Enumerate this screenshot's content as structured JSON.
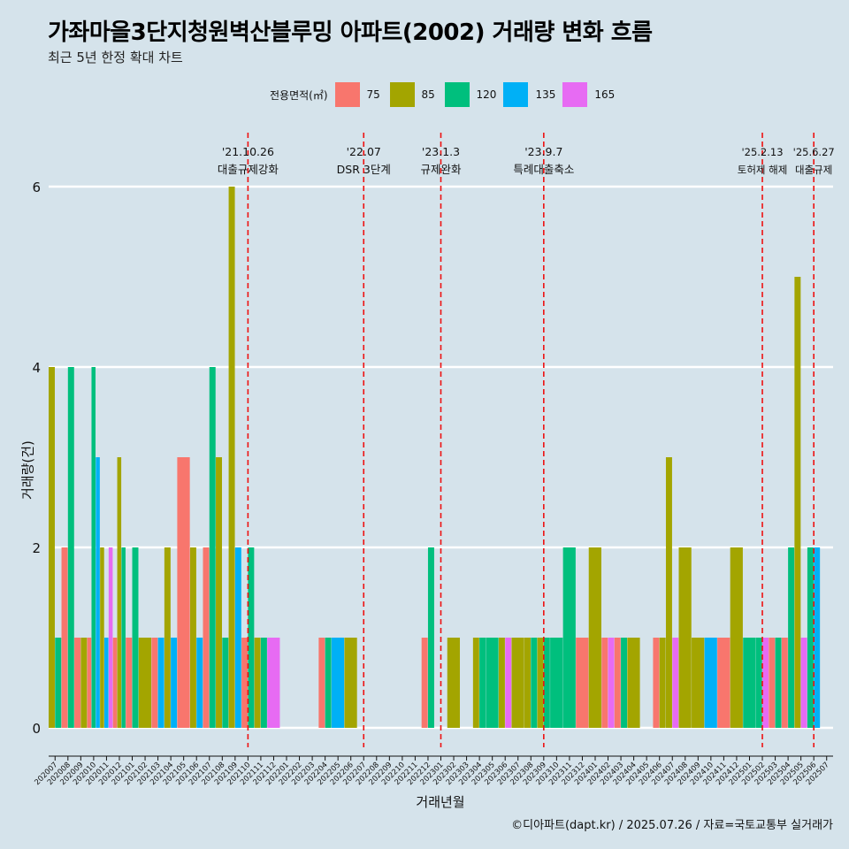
{
  "title": "가좌마을3단지청원벽산블루밍 아파트(2002) 거래량 변화 흐름",
  "subtitle": "최근 5년 한정 확대 차트",
  "caption": "©디아파트(dapt.kr) / 2025.07.26 / 자료=국토교통부 실거래가",
  "chart_data": {
    "type": "bar",
    "xlabel": "거래년월",
    "ylabel": "거래량(건)",
    "ylim": [
      0,
      6
    ],
    "yticks": [
      "0",
      "2",
      "4",
      "6"
    ],
    "grid": "horizontal",
    "legend_title": "전용면적(㎡)",
    "legend_position": "top",
    "series": [
      {
        "name": "75",
        "color": "#f8766d"
      },
      {
        "name": "85",
        "color": "#a3a500"
      },
      {
        "name": "120",
        "color": "#00bf7d"
      },
      {
        "name": "135",
        "color": "#00b0f6"
      },
      {
        "name": "165",
        "color": "#e76bf3"
      }
    ],
    "categories": [
      "202007",
      "202008",
      "202009",
      "202010",
      "202011",
      "202012",
      "202101",
      "202102",
      "202103",
      "202104",
      "202105",
      "202106",
      "202107",
      "202108",
      "202109",
      "202110",
      "202111",
      "202112",
      "202201",
      "202202",
      "202203",
      "202204",
      "202205",
      "202206",
      "202207",
      "202208",
      "202209",
      "202210",
      "202211",
      "202212",
      "202301",
      "202302",
      "202303",
      "202304",
      "202305",
      "202306",
      "202307",
      "202308",
      "202309",
      "202310",
      "202311",
      "202312",
      "202401",
      "202402",
      "202403",
      "202404",
      "202405",
      "202406",
      "202407",
      "202408",
      "202409",
      "202410",
      "202411",
      "202412",
      "202501",
      "202502",
      "202503",
      "202504",
      "202505",
      "202506",
      "202507"
    ],
    "bars": [
      {
        "month": "202007",
        "values": {
          "85": 4,
          "120": 1
        }
      },
      {
        "month": "202008",
        "values": {
          "75": 2,
          "120": 4
        }
      },
      {
        "month": "202009",
        "values": {
          "75": 1,
          "85": 1
        }
      },
      {
        "month": "202010",
        "values": {
          "75": 1,
          "120": 4,
          "135": 3
        }
      },
      {
        "month": "202011",
        "values": {
          "85": 2,
          "135": 1,
          "165": 2
        }
      },
      {
        "month": "202012",
        "values": {
          "75": 1,
          "85": 3,
          "120": 2
        }
      },
      {
        "month": "202101",
        "values": {
          "75": 1,
          "120": 2
        }
      },
      {
        "month": "202102",
        "values": {
          "85": 1
        }
      },
      {
        "month": "202103",
        "values": {
          "75": 1,
          "135": 1
        }
      },
      {
        "month": "202104",
        "values": {
          "85": 2,
          "135": 1
        }
      },
      {
        "month": "202105",
        "values": {
          "75": 3
        }
      },
      {
        "month": "202106",
        "values": {
          "85": 2,
          "135": 1
        }
      },
      {
        "month": "202107",
        "values": {
          "75": 2,
          "120": 4
        }
      },
      {
        "month": "202108",
        "values": {
          "85": 3,
          "120": 1
        }
      },
      {
        "month": "202109",
        "values": {
          "85": 6,
          "135": 2
        }
      },
      {
        "month": "202110",
        "values": {
          "75": 1,
          "120": 2
        }
      },
      {
        "month": "202111",
        "values": {
          "85": 1,
          "120": 1
        }
      },
      {
        "month": "202112",
        "values": {
          "165": 1
        }
      },
      {
        "month": "202201",
        "values": {}
      },
      {
        "month": "202202",
        "values": {}
      },
      {
        "month": "202203",
        "values": {}
      },
      {
        "month": "202204",
        "values": {
          "75": 1,
          "120": 1
        }
      },
      {
        "month": "202205",
        "values": {
          "135": 1
        }
      },
      {
        "month": "202206",
        "values": {
          "85": 1
        }
      },
      {
        "month": "202207",
        "values": {}
      },
      {
        "month": "202208",
        "values": {}
      },
      {
        "month": "202209",
        "values": {}
      },
      {
        "month": "202210",
        "values": {}
      },
      {
        "month": "202211",
        "values": {}
      },
      {
        "month": "202212",
        "values": {
          "75": 1,
          "120": 2
        }
      },
      {
        "month": "202301",
        "values": {}
      },
      {
        "month": "202302",
        "values": {
          "85": 1
        }
      },
      {
        "month": "202303",
        "values": {}
      },
      {
        "month": "202304",
        "values": {
          "85": 1,
          "120": 1
        }
      },
      {
        "month": "202305",
        "values": {
          "120": 1
        }
      },
      {
        "month": "202306",
        "values": {
          "85": 1,
          "165": 1
        }
      },
      {
        "month": "202307",
        "values": {
          "85": 1
        }
      },
      {
        "month": "202308",
        "values": {
          "85": 1,
          "120": 1
        }
      },
      {
        "month": "202309",
        "values": {
          "85": 1,
          "120": 1
        }
      },
      {
        "month": "202310",
        "values": {
          "120": 1
        }
      },
      {
        "month": "202311",
        "values": {
          "120": 2
        }
      },
      {
        "month": "202312",
        "values": {
          "75": 1
        }
      },
      {
        "month": "202401",
        "values": {
          "85": 2
        }
      },
      {
        "month": "202402",
        "values": {
          "75": 1,
          "165": 1
        }
      },
      {
        "month": "202403",
        "values": {
          "75": 1,
          "120": 1
        }
      },
      {
        "month": "202404",
        "values": {
          "85": 1
        }
      },
      {
        "month": "202405",
        "values": {}
      },
      {
        "month": "202406",
        "values": {
          "75": 1,
          "85": 1
        }
      },
      {
        "month": "202407",
        "values": {
          "85": 3,
          "165": 1
        }
      },
      {
        "month": "202408",
        "values": {
          "85": 2
        }
      },
      {
        "month": "202409",
        "values": {
          "85": 1
        }
      },
      {
        "month": "202410",
        "values": {
          "135": 1
        }
      },
      {
        "month": "202411",
        "values": {
          "75": 1
        }
      },
      {
        "month": "202412",
        "values": {
          "85": 2
        }
      },
      {
        "month": "202501",
        "values": {
          "120": 1
        }
      },
      {
        "month": "202502",
        "values": {
          "120": 1,
          "165": 1
        }
      },
      {
        "month": "202503",
        "values": {
          "75": 1,
          "120": 1
        }
      },
      {
        "month": "202504",
        "values": {
          "75": 1,
          "120": 2
        }
      },
      {
        "month": "202505",
        "values": {
          "85": 5,
          "165": 1
        }
      },
      {
        "month": "202506",
        "values": {
          "135": 2,
          "120": 2
        }
      },
      {
        "month": "202507",
        "values": {}
      }
    ],
    "annotations": [
      {
        "month": "202110",
        "date": "'21.10.26",
        "text": "대출규제강화"
      },
      {
        "month": "202207",
        "date": "'22.07",
        "text": "DSR 3단계"
      },
      {
        "month": "202301",
        "date": "'23.1.3",
        "text": "규제완화"
      },
      {
        "month": "202309",
        "date": "'23.9.7",
        "text": "특례대출축소"
      },
      {
        "month": "202502",
        "date": "'25.2.13",
        "text": "토허제 해제"
      },
      {
        "month": "202506",
        "date": "'25.6.27",
        "text": "대출규제"
      }
    ]
  }
}
